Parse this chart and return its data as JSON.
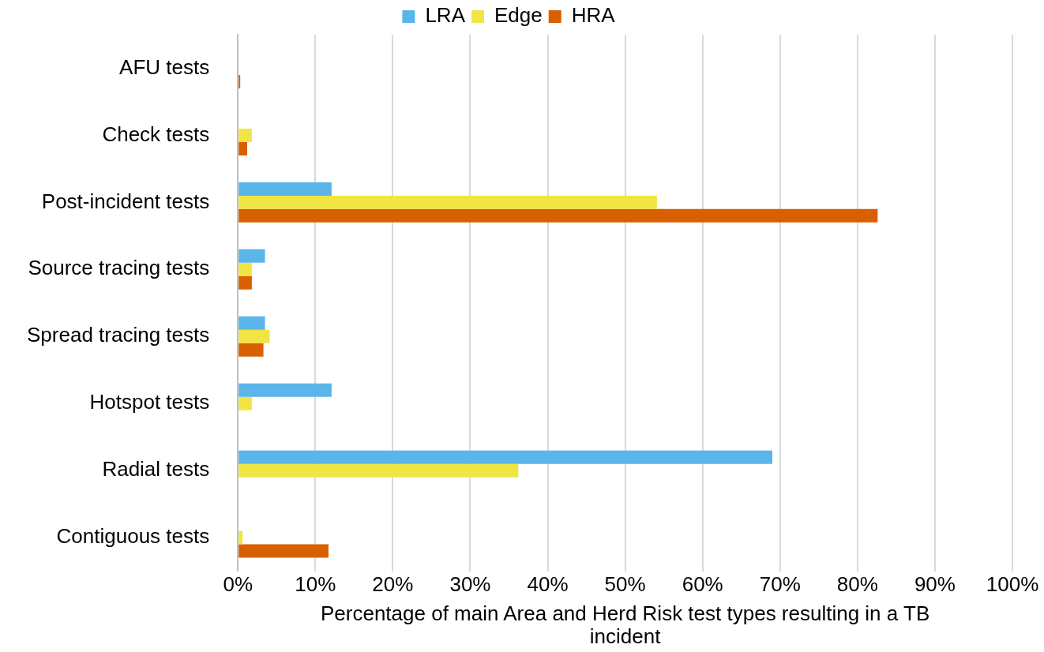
{
  "chart_data": {
    "type": "bar",
    "orientation": "horizontal",
    "xlabel": "Percentage of main Area and Herd Risk test types resulting in a TB incident",
    "categories": [
      "AFU tests",
      "Check tests",
      "Post-incident tests",
      "Source tracing tests",
      "Spread tracing tests",
      "Hotspot tests",
      "Radial tests",
      "Contiguous tests"
    ],
    "series": [
      {
        "name": "LRA",
        "color": "#5bb5ea",
        "values": [
          null,
          null,
          12.1,
          3.5,
          3.5,
          12.1,
          69.0,
          null
        ]
      },
      {
        "name": "Edge",
        "color": "#f1e543",
        "values": [
          null,
          1.8,
          54.1,
          1.8,
          4.1,
          1.8,
          36.2,
          0.6
        ]
      },
      {
        "name": "HRA",
        "color": "#d86000",
        "values": [
          0.3,
          1.2,
          82.6,
          1.8,
          3.3,
          null,
          null,
          11.7
        ]
      }
    ],
    "xlim": [
      0,
      100
    ],
    "xticks": [
      {
        "value": 0,
        "label": "0%"
      },
      {
        "value": 10,
        "label": "10%"
      },
      {
        "value": 20,
        "label": "20%"
      },
      {
        "value": 30,
        "label": "30%"
      },
      {
        "value": 40,
        "label": "40%"
      },
      {
        "value": 50,
        "label": "50%"
      },
      {
        "value": 60,
        "label": "60%"
      },
      {
        "value": 70,
        "label": "70%"
      },
      {
        "value": 80,
        "label": "80%"
      },
      {
        "value": 90,
        "label": "90%"
      },
      {
        "value": 100,
        "label": "100%"
      }
    ],
    "grid": "x",
    "legend": "top"
  }
}
